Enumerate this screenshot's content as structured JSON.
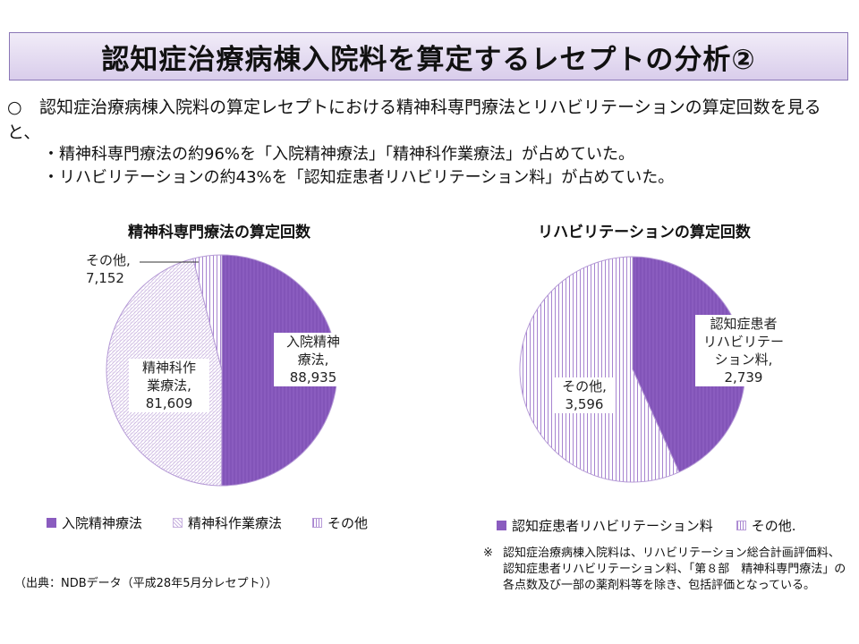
{
  "header": {
    "title": "認知症治療病棟入院料を算定するレセプトの分析②"
  },
  "summary": {
    "mark": "○",
    "main": "認知症治療病棟入院料の算定レセプトにおける精神科専門療法とリハビリテーションの算定回数を見ると、",
    "points": [
      "・精神科専門療法の約96%を「入院精神療法」「精神科作業療法」が占めていた。",
      "・リハビリテーションの約43%を「認知症患者リハビリテーション料」が占めていた。"
    ]
  },
  "chart_data": [
    {
      "type": "pie",
      "title": "精神科専門療法の算定回数",
      "categories": [
        "入院精神療法",
        "精神科作業療法",
        "その他"
      ],
      "values": [
        88935,
        81609,
        7152
      ],
      "slice_labels": [
        [
          "入院精神",
          "療法,",
          "88,935"
        ],
        [
          "精神科作",
          "業療法,",
          "81,609"
        ],
        [
          "その他,",
          "7,152"
        ]
      ],
      "legend": [
        "入院精神療法",
        "精神科作業療法",
        "その他"
      ],
      "legend_position": "bottom",
      "colors": [
        "#8a5cbf",
        "#c9b4e0",
        "#a784d0"
      ]
    },
    {
      "type": "pie",
      "title": "リハビリテーションの算定回数",
      "categories": [
        "認知症患者リハビリテーション料",
        "その他"
      ],
      "values": [
        2739,
        3596
      ],
      "slice_labels": [
        [
          "認知症患者",
          "リハビリテー",
          "ション料,",
          "2,739"
        ],
        [
          "その他,",
          "3,596"
        ]
      ],
      "legend": [
        "認知症患者リハビリテーション料",
        "その他."
      ],
      "legend_position": "bottom",
      "colors": [
        "#8a5cbf",
        "#a784d0"
      ]
    }
  ],
  "footer": {
    "source": "（出典：NDBデータ（平成28年5月分レセプト））",
    "note_mark": "※",
    "note": "認知症治療病棟入院料は、リハビリテーション総合計画評価料、認知症患者リハビリテーション料、「第８部　精神科専門療法」の各点数及び一部の薬剤料等を除き、包括評価となっている。"
  }
}
